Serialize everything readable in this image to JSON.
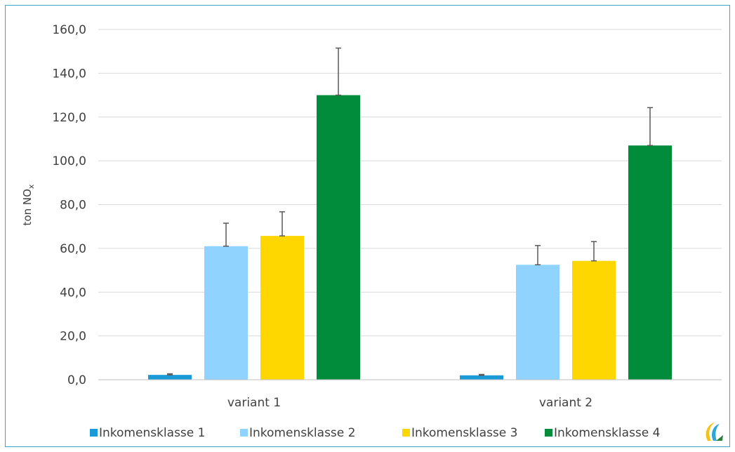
{
  "chart_data": {
    "type": "bar",
    "categories": [
      "variant 1",
      "variant 2"
    ],
    "ylabel": "ton NO",
    "ylabel_sub": "x",
    "ylim": [
      0,
      160
    ],
    "yticks": [
      "0,0",
      "20,0",
      "40,0",
      "60,0",
      "80,0",
      "100,0",
      "120,0",
      "140,0",
      "160,0"
    ],
    "grid": true,
    "legend_position": "bottom",
    "series": [
      {
        "name": "Inkomensklasse 1",
        "color": "#1a9bd7",
        "values": [
          2.2,
          2.0
        ],
        "errors": [
          0.5,
          0.4
        ]
      },
      {
        "name": "Inkomensklasse 2",
        "color": "#8fd3fe",
        "values": [
          61.0,
          52.5
        ],
        "errors": [
          10.5,
          8.8
        ]
      },
      {
        "name": "Inkomensklasse 3",
        "color": "#ffd700",
        "values": [
          65.7,
          54.3
        ],
        "errors": [
          11.0,
          8.8
        ]
      },
      {
        "name": "Inkomensklasse 4",
        "color": "#008c3a",
        "values": [
          130.0,
          107.0
        ],
        "errors": [
          21.5,
          17.3
        ]
      }
    ]
  },
  "logo": {
    "name": "logo-icon"
  }
}
